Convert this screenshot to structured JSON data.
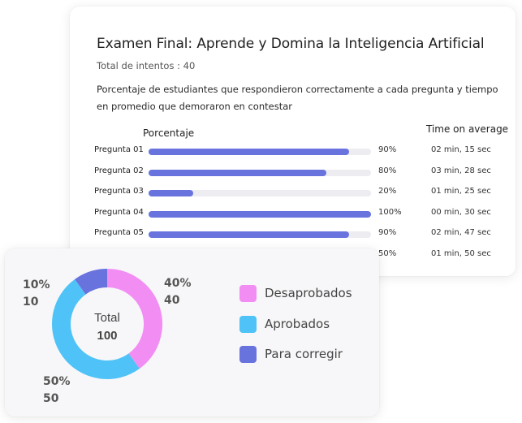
{
  "exam": {
    "title": "Examen Final: Aprende y Domina la Inteligencia Artificial",
    "attempts": "Total de intentos : 40",
    "description": "Porcentaje de estudiantes que respondieron correctamente a cada pregunta y tiempo en promedio que demoraron en contestar",
    "col_percent": "Porcentaje",
    "col_time": "Time on average",
    "questions": [
      {
        "label": "Pregunta 01",
        "percent": 90,
        "percent_text": "90%",
        "time": "02 min, 15 sec"
      },
      {
        "label": "Pregunta 02",
        "percent": 80,
        "percent_text": "80%",
        "time": "03 min, 28 sec"
      },
      {
        "label": "Pregunta 03",
        "percent": 20,
        "percent_text": "20%",
        "time": "01 min, 25 sec"
      },
      {
        "label": "Pregunta 04",
        "percent": 100,
        "percent_text": "100%",
        "time": "00 min, 30 sec"
      },
      {
        "label": "Pregunta 05",
        "percent": 90,
        "percent_text": "90%",
        "time": "02 min, 47 sec"
      },
      {
        "label": "",
        "percent": 50,
        "percent_text": "50%",
        "time": "01 min, 50 sec"
      }
    ],
    "bar_color": "#6873de",
    "track_color": "#ececf1"
  },
  "results": {
    "center_label": "Total",
    "center_value": "100",
    "segments": [
      {
        "name": "Desaprobados",
        "percent_text": "40%",
        "count": "40",
        "value": 40,
        "color": "#f28ef3"
      },
      {
        "name": "Aprobados",
        "percent_text": "50%",
        "count": "50",
        "value": 50,
        "color": "#4fc3f7"
      },
      {
        "name": "Para corregir",
        "percent_text": "10%",
        "count": "10",
        "value": 10,
        "color": "#6873de"
      }
    ]
  }
}
